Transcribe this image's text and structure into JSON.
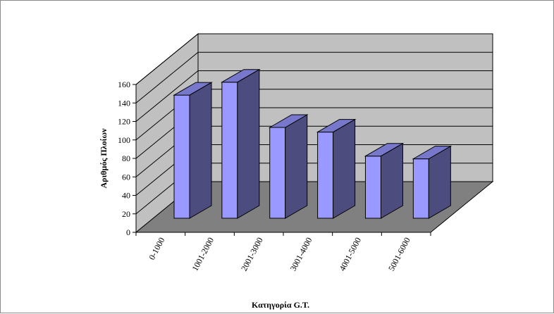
{
  "chart_data": {
    "type": "bar",
    "style": "3d-column",
    "categories": [
      "0-1000",
      "1001-2000",
      "2001-3000",
      "3001-4000",
      "4001-5000",
      "5001-6000"
    ],
    "values": [
      147,
      161,
      112,
      107,
      81,
      78
    ],
    "title": "",
    "xlabel": "Κατηγορία G.T.",
    "ylabel": "Αριθμός Πλοίων",
    "ylim": [
      0,
      160
    ],
    "yticks": [
      0,
      20,
      40,
      60,
      80,
      100,
      120,
      140,
      160
    ],
    "grid": true,
    "legend": "none",
    "colors": {
      "bar_front": "#9999ff",
      "bar_side": "#4c4c7f",
      "bar_top": "#7777cc",
      "walls": "#c0c0c0",
      "floor": "#808080",
      "gridline": "#000000"
    }
  }
}
